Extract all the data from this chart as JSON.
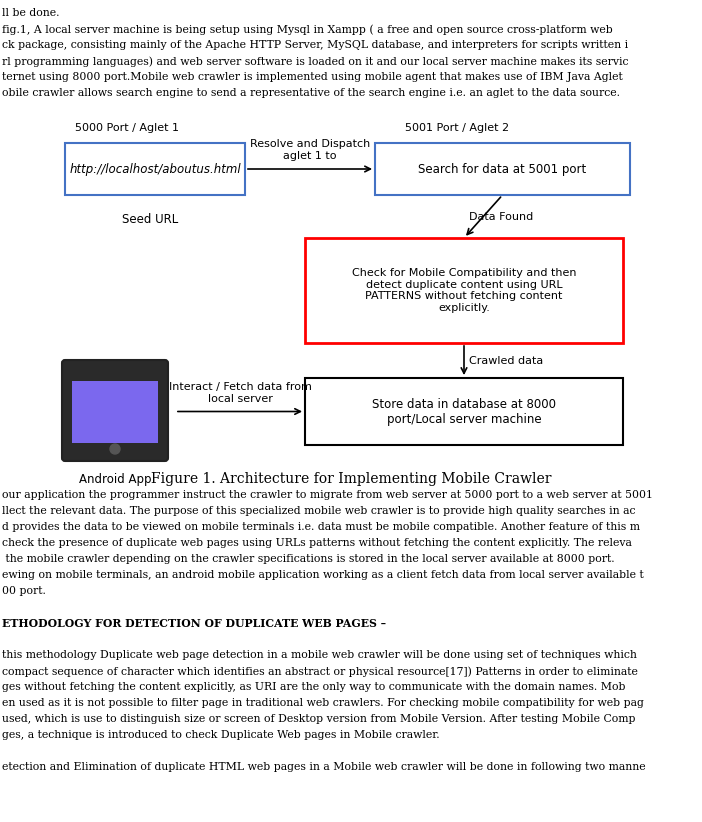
{
  "title": "Figure 1. Architecture for Implementing Mobile Crawler",
  "bg_color": "#ffffff",
  "text_color": "#000000",
  "top_texts": [
    "ll be done.",
    "fig.1, A local server machine is being setup using Mysql in Xampp ( a free and open source cross-platform web",
    "ck package, consisting mainly of the Apache HTTP Server, MySQL database, and interpreters for scripts written i",
    "rl programming languages) and web server software is loaded on it and our local server machine makes its servic",
    "ternet using 8000 port.Mobile web crawler is implemented using mobile agent that makes use of IBM Java Aglet",
    "obile crawler allows search engine to send a representative of the search engine i.e. an aglet to the data source."
  ],
  "bottom_texts": [
    "our application the programmer instruct the crawler to migrate from web server at 5000 port to a web server at 5001",
    "llect the relevant data. The purpose of this specialized mobile web crawler is to provide high quality searches in ac",
    "d provides the data to be viewed on mobile terminals i.e. data must be mobile compatible. Another feature of this m",
    "check the presence of duplicate web pages using URLs patterns without fetching the content explicitly. The releva",
    " the mobile crawler depending on the crawler specifications is stored in the local server available at 8000 port.",
    "ewing on mobile terminals, an android mobile application working as a client fetch data from local server available t",
    "00 port.",
    "",
    "ETHODOLOGY FOR DETECTION OF DUPLICATE WEB PAGES –",
    "",
    "this methodology Duplicate web page detection in a mobile web crawler will be done using set of techniques which ",
    "compact sequence of character which identifies an abstract or physical resource[17]) Patterns in order to eliminate",
    "ges without fetching the content explicitly, as URI are the only way to communicate with the domain names. Mob",
    "en used as it is not possible to filter page in traditional web crawlers. For checking mobile compatibility for web pag",
    "used, which is use to distinguish size or screen of Desktop version from Mobile Version. After testing Mobile Comp",
    "ges, a technique is introduced to check Duplicate Web pages in Mobile crawler.",
    "",
    "etection and Elimination of duplicate HTML web pages in a Mobile web crawler will be done in following two manne"
  ],
  "box1_label": "http://localhost/aboutus.html",
  "box1_top": "5000 Port / Aglet 1",
  "box1_bottom": "Seed URL",
  "box2_label": "Search for data at 5001 port",
  "box2_top": "5001 Port / Aglet 2",
  "box3_label": "Check for Mobile Compatibility and then\ndetect duplicate content using URL\nPATTERNS without fetching content\nexplicitly.",
  "box4_label": "Store data in database at 8000\nport/Local server machine",
  "arrow1_label": "Resolve and Dispatch\naglet 1 to",
  "arrow2_label": "Data Found",
  "arrow3_label": "Crawled data",
  "arrow4_label": "Interact / Fetch data from\nlocal server",
  "android_label": "Android App",
  "box1_edge": "#4472c4",
  "box2_edge": "#4472c4",
  "box3_edge": "#ff0000",
  "box4_edge": "#000000",
  "phone_body": "#2a2a2a",
  "phone_screen": "#7B68EE"
}
